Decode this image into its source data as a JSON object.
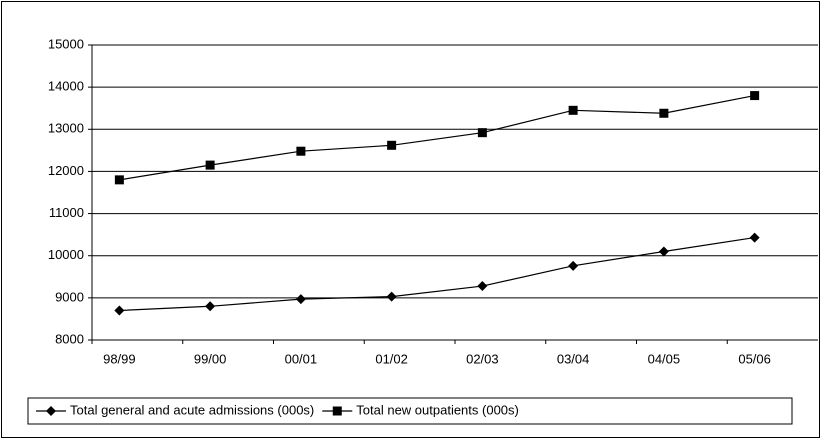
{
  "chart_data": {
    "type": "line",
    "categories": [
      "98/99",
      "99/00",
      "00/01",
      "01/02",
      "02/03",
      "03/04",
      "04/05",
      "05/06"
    ],
    "series": [
      {
        "name": "Total general and acute admissions (000s)",
        "color": "#000000",
        "marker": "diamond",
        "values": [
          8700,
          8800,
          8970,
          9030,
          9280,
          9760,
          10100,
          10430
        ]
      },
      {
        "name": "Total new outpatients (000s)",
        "color": "#000000",
        "marker": "square",
        "values": [
          11800,
          12150,
          12480,
          12620,
          12920,
          13450,
          13380,
          13800
        ]
      }
    ],
    "ylim": [
      8000,
      15000
    ],
    "yticks": [
      8000,
      9000,
      10000,
      11000,
      12000,
      13000,
      14000,
      15000
    ],
    "grid": true,
    "legend": "bottom"
  }
}
